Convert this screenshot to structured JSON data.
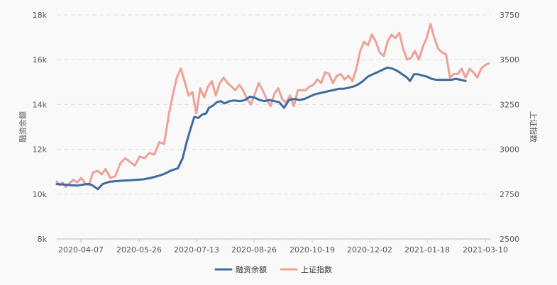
{
  "chart_data": {
    "type": "line",
    "title": "",
    "xlabel": "",
    "y_left": {
      "label": "融资余额",
      "ticks": [
        "8k",
        "10k",
        "12k",
        "14k",
        "16k",
        "18k"
      ],
      "ylim": [
        8000,
        18000
      ]
    },
    "y_right": {
      "label": "上证指数",
      "ticks": [
        "2500",
        "2750",
        "3000",
        "3250",
        "3500",
        "3750"
      ],
      "ylim": [
        2500,
        3750
      ]
    },
    "x_ticks": [
      "2020-04-07",
      "2020-05-26",
      "2020-07-13",
      "2020-08-26",
      "2020-10-19",
      "2020-12-02",
      "2021-01-18",
      "2021-03-10"
    ],
    "grid": true,
    "legend_position": "bottom-center",
    "series": [
      {
        "name": "融资余额",
        "axis": "left",
        "color": "#3f6a9d",
        "points": [
          [
            "2020-03-01",
            10450
          ],
          [
            "2020-03-08",
            10430
          ],
          [
            "2020-03-15",
            10400
          ],
          [
            "2020-03-22",
            10380
          ],
          [
            "2020-03-29",
            10430
          ],
          [
            "2020-04-03",
            10460
          ],
          [
            "2020-04-07",
            10380
          ],
          [
            "2020-04-12",
            10220
          ],
          [
            "2020-04-17",
            10450
          ],
          [
            "2020-04-24",
            10550
          ],
          [
            "2020-05-01",
            10580
          ],
          [
            "2020-05-08",
            10600
          ],
          [
            "2020-05-15",
            10620
          ],
          [
            "2020-05-22",
            10640
          ],
          [
            "2020-05-29",
            10660
          ],
          [
            "2020-06-05",
            10720
          ],
          [
            "2020-06-12",
            10800
          ],
          [
            "2020-06-19",
            10900
          ],
          [
            "2020-06-26",
            11050
          ],
          [
            "2020-07-03",
            11150
          ],
          [
            "2020-07-08",
            11600
          ],
          [
            "2020-07-12",
            12300
          ],
          [
            "2020-07-16",
            12900
          ],
          [
            "2020-07-20",
            13450
          ],
          [
            "2020-07-24",
            13400
          ],
          [
            "2020-07-28",
            13550
          ],
          [
            "2020-08-01",
            13600
          ],
          [
            "2020-08-04",
            13850
          ],
          [
            "2020-08-08",
            13950
          ],
          [
            "2020-08-12",
            14100
          ],
          [
            "2020-08-16",
            14150
          ],
          [
            "2020-08-20",
            14050
          ],
          [
            "2020-08-25",
            14150
          ],
          [
            "2020-08-30",
            14180
          ],
          [
            "2020-09-05",
            14150
          ],
          [
            "2020-09-10",
            14200
          ],
          [
            "2020-09-15",
            14350
          ],
          [
            "2020-09-20",
            14300
          ],
          [
            "2020-09-25",
            14200
          ],
          [
            "2020-09-30",
            14150
          ],
          [
            "2020-10-05",
            14200
          ],
          [
            "2020-10-10",
            14150
          ],
          [
            "2020-10-15",
            14100
          ],
          [
            "2020-10-20",
            13850
          ],
          [
            "2020-10-25",
            14200
          ],
          [
            "2020-10-30",
            14250
          ],
          [
            "2020-11-05",
            14200
          ],
          [
            "2020-11-10",
            14250
          ],
          [
            "2020-11-15",
            14350
          ],
          [
            "2020-11-20",
            14450
          ],
          [
            "2020-11-25",
            14500
          ],
          [
            "2020-11-30",
            14550
          ],
          [
            "2020-12-05",
            14600
          ],
          [
            "2020-12-10",
            14650
          ],
          [
            "2020-12-15",
            14700
          ],
          [
            "2020-12-20",
            14700
          ],
          [
            "2020-12-25",
            14750
          ],
          [
            "2020-12-30",
            14800
          ],
          [
            "2021-01-04",
            14900
          ],
          [
            "2021-01-09",
            15050
          ],
          [
            "2021-01-14",
            15250
          ],
          [
            "2021-01-19",
            15350
          ],
          [
            "2021-01-24",
            15450
          ],
          [
            "2021-01-29",
            15550
          ],
          [
            "2021-02-03",
            15650
          ],
          [
            "2021-02-08",
            15600
          ],
          [
            "2021-02-13",
            15500
          ],
          [
            "2021-02-18",
            15350
          ],
          [
            "2021-02-23",
            15200
          ],
          [
            "2021-02-26",
            15050
          ],
          [
            "2021-03-02",
            15350
          ],
          [
            "2021-03-06",
            15350
          ],
          [
            "2021-03-10",
            15300
          ],
          [
            "2021-03-15",
            15250
          ],
          [
            "2021-03-20",
            15150
          ],
          [
            "2021-03-25",
            15100
          ],
          [
            "2021-03-30",
            15100
          ],
          [
            "2021-04-04",
            15100
          ],
          [
            "2021-04-09",
            15100
          ],
          [
            "2021-04-14",
            15150
          ],
          [
            "2021-04-19",
            15100
          ],
          [
            "2021-04-24",
            15050
          ]
        ]
      },
      {
        "name": "上证指数",
        "axis": "right",
        "color": "#eda198",
        "points": [
          [
            "2020-03-01",
            2820
          ],
          [
            "2020-03-04",
            2800
          ],
          [
            "2020-03-07",
            2815
          ],
          [
            "2020-03-10",
            2790
          ],
          [
            "2020-03-14",
            2810
          ],
          [
            "2020-03-18",
            2830
          ],
          [
            "2020-03-22",
            2815
          ],
          [
            "2020-03-26",
            2840
          ],
          [
            "2020-03-30",
            2810
          ],
          [
            "2020-04-03",
            2800
          ],
          [
            "2020-04-07",
            2870
          ],
          [
            "2020-04-12",
            2880
          ],
          [
            "2020-04-16",
            2860
          ],
          [
            "2020-04-20",
            2890
          ],
          [
            "2020-04-25",
            2840
          ],
          [
            "2020-04-30",
            2850
          ],
          [
            "2020-05-05",
            2920
          ],
          [
            "2020-05-10",
            2950
          ],
          [
            "2020-05-15",
            2930
          ],
          [
            "2020-05-20",
            2910
          ],
          [
            "2020-05-25",
            2960
          ],
          [
            "2020-05-30",
            2950
          ],
          [
            "2020-06-04",
            2980
          ],
          [
            "2020-06-09",
            2970
          ],
          [
            "2020-06-14",
            3040
          ],
          [
            "2020-06-19",
            3030
          ],
          [
            "2020-06-24",
            3200
          ],
          [
            "2020-06-29",
            3330
          ],
          [
            "2020-07-02",
            3400
          ],
          [
            "2020-07-06",
            3450
          ],
          [
            "2020-07-10",
            3380
          ],
          [
            "2020-07-14",
            3300
          ],
          [
            "2020-07-18",
            3320
          ],
          [
            "2020-07-22",
            3200
          ],
          [
            "2020-07-26",
            3340
          ],
          [
            "2020-07-30",
            3290
          ],
          [
            "2020-08-03",
            3350
          ],
          [
            "2020-08-07",
            3380
          ],
          [
            "2020-08-11",
            3300
          ],
          [
            "2020-08-15",
            3370
          ],
          [
            "2020-08-19",
            3400
          ],
          [
            "2020-08-23",
            3370
          ],
          [
            "2020-08-27",
            3350
          ],
          [
            "2020-08-31",
            3330
          ],
          [
            "2020-09-04",
            3360
          ],
          [
            "2020-09-08",
            3330
          ],
          [
            "2020-09-12",
            3280
          ],
          [
            "2020-09-16",
            3250
          ],
          [
            "2020-09-20",
            3310
          ],
          [
            "2020-09-24",
            3370
          ],
          [
            "2020-09-28",
            3330
          ],
          [
            "2020-10-02",
            3280
          ],
          [
            "2020-10-06",
            3240
          ],
          [
            "2020-10-10",
            3310
          ],
          [
            "2020-10-14",
            3340
          ],
          [
            "2020-10-18",
            3280
          ],
          [
            "2020-10-22",
            3260
          ],
          [
            "2020-10-26",
            3300
          ],
          [
            "2020-10-30",
            3240
          ],
          [
            "2020-11-03",
            3330
          ],
          [
            "2020-11-07",
            3330
          ],
          [
            "2020-11-11",
            3330
          ],
          [
            "2020-11-15",
            3350
          ],
          [
            "2020-11-19",
            3360
          ],
          [
            "2020-11-23",
            3390
          ],
          [
            "2020-11-27",
            3370
          ],
          [
            "2020-12-01",
            3430
          ],
          [
            "2020-12-05",
            3420
          ],
          [
            "2020-12-09",
            3370
          ],
          [
            "2020-12-13",
            3410
          ],
          [
            "2020-12-17",
            3420
          ],
          [
            "2020-12-21",
            3390
          ],
          [
            "2020-12-25",
            3410
          ],
          [
            "2020-12-29",
            3380
          ],
          [
            "2021-01-02",
            3450
          ],
          [
            "2021-01-06",
            3550
          ],
          [
            "2021-01-10",
            3600
          ],
          [
            "2021-01-14",
            3580
          ],
          [
            "2021-01-18",
            3640
          ],
          [
            "2021-01-22",
            3600
          ],
          [
            "2021-01-26",
            3540
          ],
          [
            "2021-01-30",
            3520
          ],
          [
            "2021-02-03",
            3600
          ],
          [
            "2021-02-07",
            3640
          ],
          [
            "2021-02-11",
            3620
          ],
          [
            "2021-02-15",
            3650
          ],
          [
            "2021-02-19",
            3560
          ],
          [
            "2021-02-23",
            3500
          ],
          [
            "2021-02-27",
            3510
          ],
          [
            "2021-03-03",
            3550
          ],
          [
            "2021-03-07",
            3500
          ],
          [
            "2021-03-11",
            3570
          ],
          [
            "2021-03-15",
            3620
          ],
          [
            "2021-03-19",
            3700
          ],
          [
            "2021-03-23",
            3620
          ],
          [
            "2021-03-27",
            3560
          ],
          [
            "2021-03-31",
            3540
          ],
          [
            "2021-04-04",
            3530
          ],
          [
            "2021-04-08",
            3400
          ],
          [
            "2021-04-12",
            3420
          ],
          [
            "2021-04-16",
            3420
          ],
          [
            "2021-04-20",
            3450
          ],
          [
            "2021-04-24",
            3400
          ],
          [
            "2021-04-28",
            3450
          ],
          [
            "2021-05-02",
            3430
          ],
          [
            "2021-05-06",
            3400
          ],
          [
            "2021-05-10",
            3450
          ],
          [
            "2021-05-14",
            3470
          ],
          [
            "2021-05-18",
            3480
          ]
        ]
      }
    ]
  }
}
